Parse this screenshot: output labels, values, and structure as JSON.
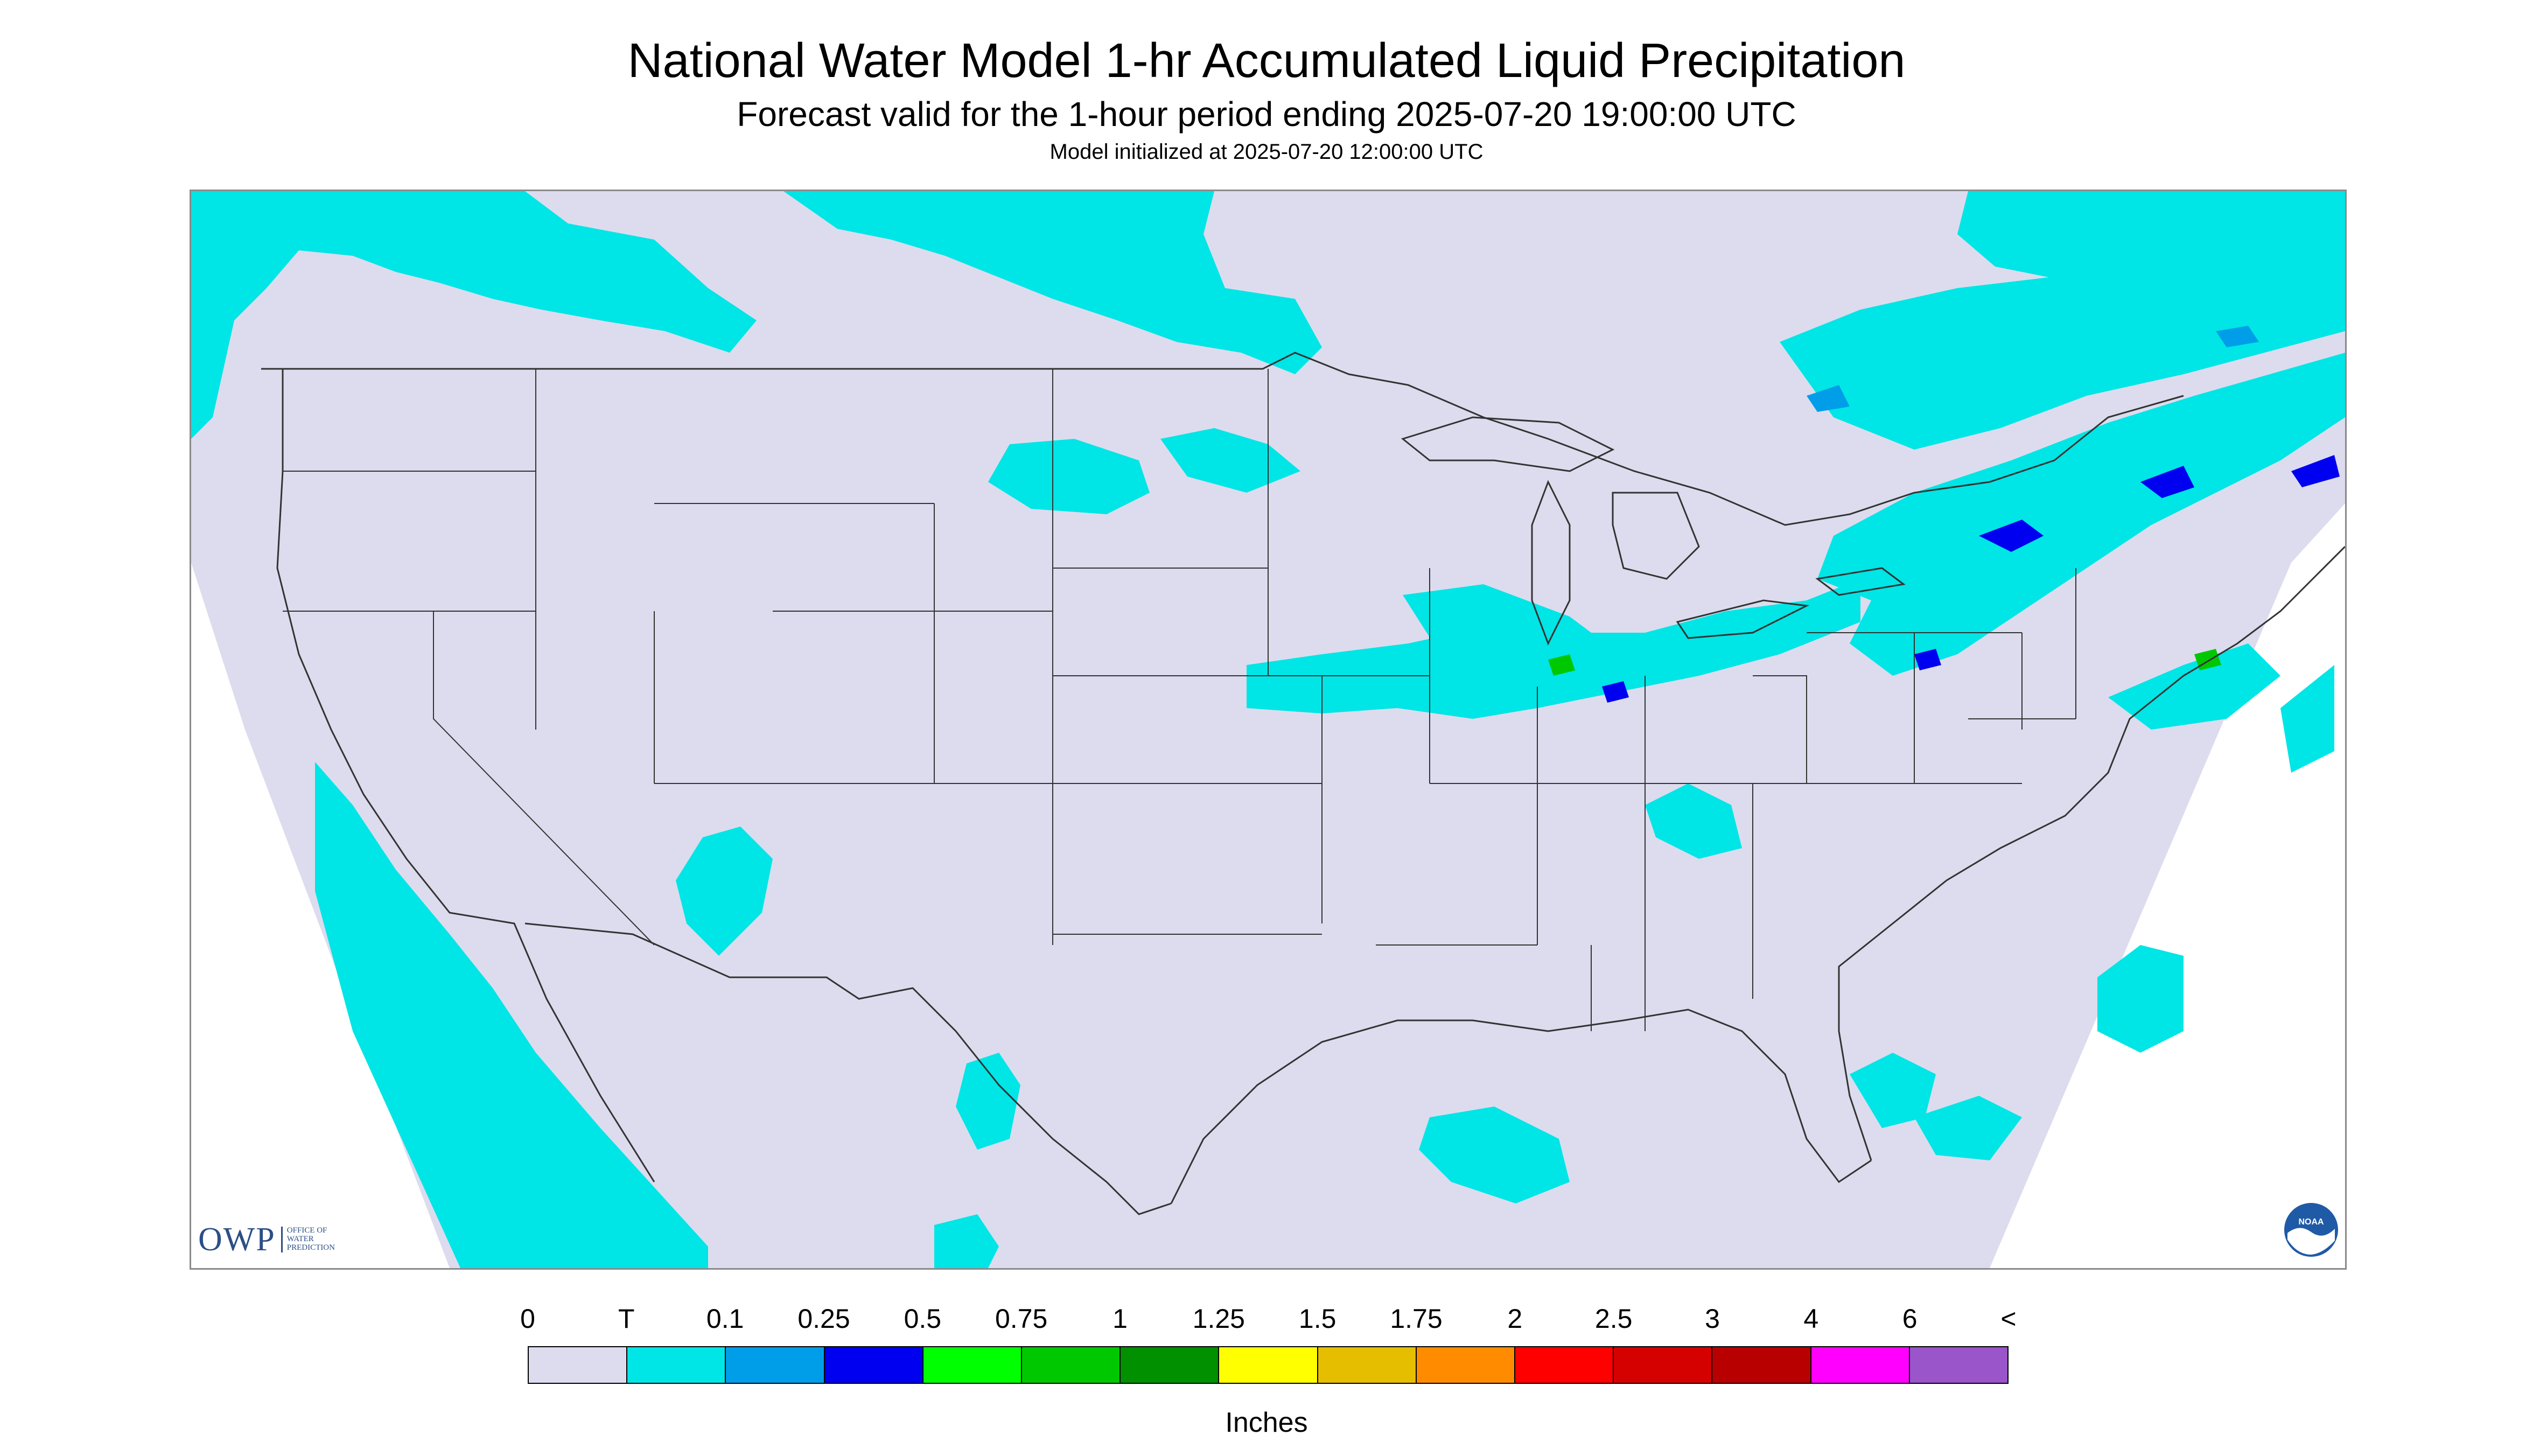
{
  "header": {
    "title": "National Water Model 1-hr Accumulated Liquid Precipitation",
    "subtitle": "Forecast valid for the 1-hour period ending 2025-07-20 19:00:00 UTC",
    "init_text": "Model initialized at 2025-07-20 12:00:00 UTC"
  },
  "logos": {
    "owp_text": "OWP",
    "owp_sub_1": "OFFICE OF",
    "owp_sub_2": "WATER",
    "owp_sub_3": "PREDICTION",
    "noaa_text": "NOAA"
  },
  "legend": {
    "tick_labels": [
      "0",
      "T",
      "0.1",
      "0.25",
      "0.5",
      "0.75",
      "1",
      "1.25",
      "1.5",
      "1.75",
      "2",
      "2.5",
      "3",
      "4",
      "6",
      "<"
    ],
    "colors": [
      "#dcdcee",
      "#00e5e5",
      "#009ee8",
      "#0000f0",
      "#00ff00",
      "#00c800",
      "#009000",
      "#ffff00",
      "#e6be00",
      "#ff8c00",
      "#ff0000",
      "#d50000",
      "#b80000",
      "#ff00ff",
      "#9955c9"
    ],
    "units_label": "Inches"
  },
  "map": {
    "background_color": "#dcdcee",
    "outside_domain_color": "#ffffff",
    "precip_light_color": "#00e5e5",
    "precip_medium_color": "#009ee8",
    "precip_heavy_color": "#0000f0",
    "precip_green_color": "#00c800",
    "boundary_color": "#333333"
  }
}
